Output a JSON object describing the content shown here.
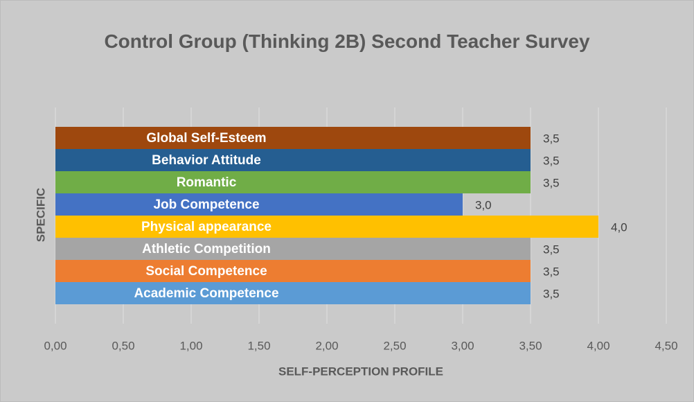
{
  "chart_data": {
    "type": "bar",
    "orientation": "horizontal",
    "title": "Control Group (Thinking 2B) Second Teacher Survey",
    "x_label": "SELF-PERCEPTION PROFILE",
    "y_label": "SPECIFIC",
    "categories": [
      "Academic Competence",
      "Social Competence",
      "Athletic Competition",
      "Physical appearance",
      "Job Competence",
      "Romantic",
      "Behavior Attitude",
      "Global Self-Esteem"
    ],
    "values": [
      3.5,
      3.5,
      3.5,
      4.0,
      3.0,
      3.5,
      3.5,
      3.5
    ],
    "value_labels": [
      "3,5",
      "3,5",
      "3,5",
      "4,0",
      "3,0",
      "3,5",
      "3,5",
      "3,5"
    ],
    "colors": [
      "#5b9bd5",
      "#ed7d31",
      "#a5a5a5",
      "#ffc000",
      "#4472c4",
      "#70ad47",
      "#255e91",
      "#9e480e"
    ],
    "xlim": [
      0,
      4.5
    ],
    "xticks": [
      {
        "value": 0,
        "label": "0,00"
      },
      {
        "value": 0.5,
        "label": "0,50"
      },
      {
        "value": 1,
        "label": "1,00"
      },
      {
        "value": 1.5,
        "label": "1,50"
      },
      {
        "value": 2,
        "label": "2,00"
      },
      {
        "value": 2.5,
        "label": "2,50"
      },
      {
        "value": 3,
        "label": "3,00"
      },
      {
        "value": 3.5,
        "label": "3,50"
      },
      {
        "value": 4,
        "label": "4,00"
      },
      {
        "value": 4.5,
        "label": "4,50"
      }
    ],
    "grid": true
  }
}
